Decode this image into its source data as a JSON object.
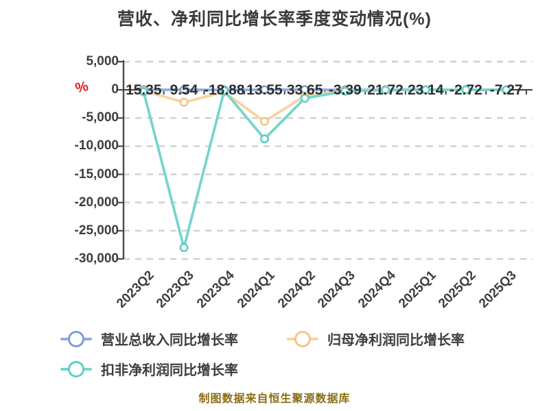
{
  "title": "营收、净利同比增长率季度变动情况(%)",
  "footer": "制图数据来自恒生聚源数据库",
  "y_axis": {
    "unit_symbol": "%",
    "tick_values": [
      5000,
      0,
      -5000,
      -10000,
      -15000,
      -20000,
      -25000,
      -30000
    ],
    "tick_labels": [
      "5,000",
      "0",
      "-5,000",
      "-10,000",
      "-15,000",
      "-20,000",
      "-25,000",
      "-30,000"
    ]
  },
  "legend": {
    "position": "bottom-left",
    "items": [
      {
        "label": "营业总收入同比增长率",
        "key": "revenue"
      },
      {
        "label": "归母净利润同比增长率",
        "key": "net_profit"
      },
      {
        "label": "扣非净利润同比增长率",
        "key": "deducted_profit"
      }
    ]
  },
  "colors": {
    "background": "#ffffff",
    "title_text": "#3a3a3a",
    "axis_text": "#3d3d3d",
    "axis_line": "#4a4a4a",
    "grid_line": "#cfcfcf",
    "point_label_text": "#2e2e2e",
    "percent_symbol": "#e02020",
    "legend_text": "#3d3d3d",
    "footer_text": "#8a6d15",
    "revenue_line": "#92aedd",
    "revenue_marker": "#7e9dd0",
    "net_profit_line": "#f8d3a0",
    "net_profit_marker": "#f2c488",
    "deducted_profit_line": "#77d5cd",
    "deducted_profit_marker": "#5fcec5"
  },
  "chart_data": {
    "type": "line",
    "title": "营收、净利同比增长率季度变动情况(%)",
    "xlabel": "",
    "ylabel": "%",
    "ylim": [
      -30000,
      5000
    ],
    "grid": "horizontal-dashed",
    "legend_position": "bottom-left",
    "x_label_rotation_deg": 45,
    "categories": [
      "2023Q2",
      "2023Q3",
      "2023Q4",
      "2024Q1",
      "2024Q2",
      "2024Q3",
      "2024Q4",
      "2025Q1",
      "2025Q2",
      "2025Q3"
    ],
    "series": [
      {
        "name": "营业总收入同比增长率",
        "key": "revenue",
        "values": [
          15.35,
          9.54,
          -18.88,
          13.55,
          33.65,
          -3.39,
          21.72,
          23.14,
          -2.72,
          -7.27
        ],
        "point_labels": [
          "15.35",
          "9.54",
          "-18.88",
          "13.55",
          "33.65",
          "-3.39",
          "21.72",
          "23.14",
          "-2.72",
          "-7.27"
        ],
        "labels_shown": true
      },
      {
        "name": "归母净利润同比增长率",
        "key": "net_profit",
        "values": [
          -200,
          -2200,
          -400,
          -5600,
          -1100,
          -150,
          -50,
          0,
          0,
          0
        ],
        "labels_shown": false,
        "values_estimated_from_pixels": true
      },
      {
        "name": "扣非净利润同比增长率",
        "key": "deducted_profit",
        "values": [
          -350,
          -28000,
          -150,
          -8700,
          -1500,
          -250,
          -50,
          0,
          0,
          0
        ],
        "labels_shown": false,
        "values_estimated_from_pixels": true
      }
    ]
  }
}
